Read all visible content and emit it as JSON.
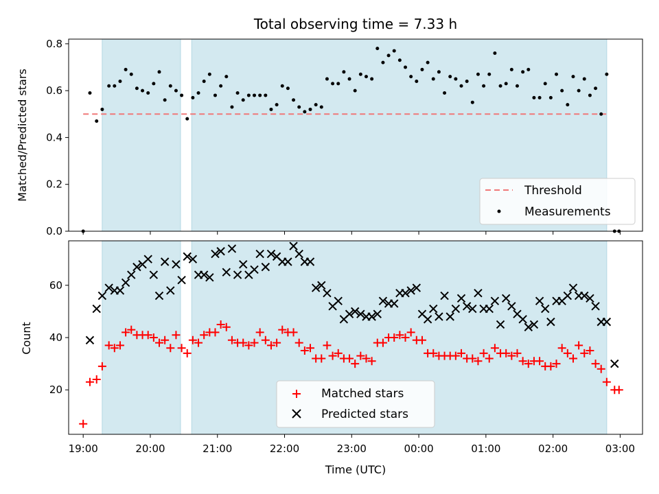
{
  "chart_data": [
    {
      "type": "scatter",
      "title": "Total observing time = 7.33 h",
      "ylabel": "Matched/Predicted stars",
      "xlabel": "",
      "xlim": [
        "18:47",
        "03:20"
      ],
      "ylim": [
        0.0,
        0.82
      ],
      "yticks": [
        0.0,
        0.2,
        0.4,
        0.6,
        0.8
      ],
      "ytick_labels": [
        "0.0",
        "0.2",
        "0.4",
        "0.6",
        "0.8"
      ],
      "grid": false,
      "legend_position": "lower-right",
      "shaded_intervals": [
        [
          "19:17",
          "20:27"
        ],
        [
          "20:37",
          "02:48"
        ]
      ],
      "shade_color": "#d3e9f0",
      "series": [
        {
          "name": "Threshold",
          "kind": "dashed-line",
          "color": "#f07878",
          "x": [
            "19:00",
            "02:48"
          ],
          "y": [
            0.5,
            0.5
          ]
        },
        {
          "name": "Measurements",
          "kind": "points",
          "color": "#000000",
          "x": [
            "19:00",
            "19:06",
            "19:12",
            "19:17",
            "19:23",
            "19:28",
            "19:33",
            "19:38",
            "19:43",
            "19:48",
            "19:53",
            "19:58",
            "20:03",
            "20:08",
            "20:13",
            "20:18",
            "20:23",
            "20:28",
            "20:33",
            "20:38",
            "20:43",
            "20:48",
            "20:53",
            "20:58",
            "21:03",
            "21:08",
            "21:13",
            "21:18",
            "21:23",
            "21:28",
            "21:33",
            "21:38",
            "21:43",
            "21:48",
            "21:53",
            "21:58",
            "22:03",
            "22:08",
            "22:13",
            "22:18",
            "22:23",
            "22:28",
            "22:33",
            "22:38",
            "22:43",
            "22:48",
            "22:53",
            "22:58",
            "23:03",
            "23:08",
            "23:13",
            "23:18",
            "23:23",
            "23:28",
            "23:33",
            "23:38",
            "23:43",
            "23:48",
            "23:53",
            "23:58",
            "00:03",
            "00:08",
            "00:13",
            "00:18",
            "00:23",
            "00:28",
            "00:33",
            "00:38",
            "00:43",
            "00:48",
            "00:53",
            "00:58",
            "01:03",
            "01:08",
            "01:13",
            "01:18",
            "01:23",
            "01:28",
            "01:33",
            "01:38",
            "01:43",
            "01:48",
            "01:53",
            "01:58",
            "02:03",
            "02:08",
            "02:13",
            "02:18",
            "02:23",
            "02:28",
            "02:33",
            "02:38",
            "02:43",
            "02:48",
            "02:55",
            "02:59"
          ],
          "y": [
            0.0,
            0.59,
            0.47,
            0.52,
            0.62,
            0.62,
            0.64,
            0.69,
            0.67,
            0.61,
            0.6,
            0.59,
            0.63,
            0.68,
            0.56,
            0.62,
            0.6,
            0.58,
            0.48,
            0.57,
            0.59,
            0.64,
            0.67,
            0.58,
            0.62,
            0.66,
            0.53,
            0.59,
            0.56,
            0.58,
            0.58,
            0.58,
            0.58,
            0.52,
            0.54,
            0.62,
            0.61,
            0.56,
            0.53,
            0.51,
            0.52,
            0.54,
            0.53,
            0.65,
            0.63,
            0.63,
            0.68,
            0.65,
            0.6,
            0.67,
            0.66,
            0.65,
            0.78,
            0.72,
            0.75,
            0.77,
            0.73,
            0.7,
            0.66,
            0.64,
            0.69,
            0.72,
            0.65,
            0.68,
            0.59,
            0.66,
            0.65,
            0.62,
            0.64,
            0.55,
            0.67,
            0.62,
            0.67,
            0.76,
            0.62,
            0.63,
            0.69,
            0.62,
            0.68,
            0.69,
            0.57,
            0.57,
            0.63,
            0.57,
            0.67,
            0.6,
            0.54,
            0.66,
            0.6,
            0.65,
            0.58,
            0.61,
            0.5,
            0.67,
            0.0,
            0.0
          ]
        }
      ]
    },
    {
      "type": "scatter",
      "title": "",
      "xlabel": "Time (UTC)",
      "ylabel": "Count",
      "xlim": [
        "18:47",
        "03:20"
      ],
      "ylim": [
        3,
        77
      ],
      "xticks": [
        "19:00",
        "20:00",
        "21:00",
        "22:00",
        "23:00",
        "00:00",
        "01:00",
        "02:00",
        "03:00"
      ],
      "yticks": [
        20,
        40,
        60
      ],
      "grid": false,
      "legend_position": "lower-center",
      "shaded_intervals": [
        [
          "19:17",
          "20:27"
        ],
        [
          "20:37",
          "02:48"
        ]
      ],
      "shade_color": "#d3e9f0",
      "series": [
        {
          "name": "Matched stars",
          "marker": "plus",
          "color": "#ff0000",
          "x": [
            "19:00",
            "19:06",
            "19:12",
            "19:17",
            "19:23",
            "19:28",
            "19:33",
            "19:38",
            "19:43",
            "19:48",
            "19:53",
            "19:58",
            "20:03",
            "20:08",
            "20:13",
            "20:18",
            "20:23",
            "20:28",
            "20:33",
            "20:38",
            "20:43",
            "20:48",
            "20:53",
            "20:58",
            "21:03",
            "21:08",
            "21:13",
            "21:18",
            "21:23",
            "21:28",
            "21:33",
            "21:38",
            "21:43",
            "21:48",
            "21:53",
            "21:58",
            "22:03",
            "22:08",
            "22:13",
            "22:18",
            "22:23",
            "22:28",
            "22:33",
            "22:38",
            "22:43",
            "22:48",
            "22:53",
            "22:58",
            "23:03",
            "23:08",
            "23:13",
            "23:18",
            "23:23",
            "23:28",
            "23:33",
            "23:38",
            "23:43",
            "23:48",
            "23:53",
            "23:58",
            "00:03",
            "00:08",
            "00:13",
            "00:18",
            "00:23",
            "00:28",
            "00:33",
            "00:38",
            "00:43",
            "00:48",
            "00:53",
            "00:58",
            "01:03",
            "01:08",
            "01:13",
            "01:18",
            "01:23",
            "01:28",
            "01:33",
            "01:38",
            "01:43",
            "01:48",
            "01:53",
            "01:58",
            "02:03",
            "02:08",
            "02:13",
            "02:18",
            "02:23",
            "02:28",
            "02:33",
            "02:38",
            "02:43",
            "02:48",
            "02:55",
            "02:59"
          ],
          "y": [
            7,
            23,
            24,
            29,
            37,
            36,
            37,
            42,
            43,
            41,
            41,
            41,
            40,
            38,
            39,
            36,
            41,
            36,
            34,
            39,
            38,
            41,
            42,
            42,
            45,
            44,
            39,
            38,
            38,
            37,
            38,
            42,
            39,
            37,
            38,
            43,
            42,
            42,
            38,
            35,
            36,
            32,
            32,
            37,
            33,
            34,
            32,
            32,
            30,
            33,
            32,
            31,
            38,
            38,
            40,
            40,
            41,
            40,
            42,
            39,
            39,
            34,
            34,
            33,
            33,
            33,
            33,
            34,
            32,
            32,
            31,
            34,
            32,
            36,
            34,
            34,
            33,
            34,
            31,
            30,
            31,
            31,
            29,
            29,
            30,
            36,
            34,
            32,
            37,
            34,
            35,
            30,
            28,
            23,
            20,
            20
          ]
        },
        {
          "name": "Predicted stars",
          "marker": "x",
          "color": "#000000",
          "x": [
            "19:06",
            "19:12",
            "19:17",
            "19:23",
            "19:28",
            "19:33",
            "19:38",
            "19:43",
            "19:48",
            "19:53",
            "19:58",
            "20:03",
            "20:08",
            "20:13",
            "20:18",
            "20:23",
            "20:28",
            "20:33",
            "20:38",
            "20:43",
            "20:48",
            "20:53",
            "20:58",
            "21:03",
            "21:08",
            "21:13",
            "21:18",
            "21:23",
            "21:28",
            "21:33",
            "21:38",
            "21:43",
            "21:48",
            "21:53",
            "21:58",
            "22:03",
            "22:08",
            "22:13",
            "22:18",
            "22:23",
            "22:28",
            "22:33",
            "22:38",
            "22:43",
            "22:48",
            "22:53",
            "22:58",
            "23:03",
            "23:08",
            "23:13",
            "23:18",
            "23:23",
            "23:28",
            "23:33",
            "23:38",
            "23:43",
            "23:48",
            "23:53",
            "23:58",
            "00:03",
            "00:08",
            "00:13",
            "00:18",
            "00:23",
            "00:28",
            "00:33",
            "00:38",
            "00:43",
            "00:48",
            "00:53",
            "00:58",
            "01:03",
            "01:08",
            "01:13",
            "01:18",
            "01:23",
            "01:28",
            "01:33",
            "01:38",
            "01:43",
            "01:48",
            "01:53",
            "01:58",
            "02:03",
            "02:08",
            "02:13",
            "02:18",
            "02:23",
            "02:28",
            "02:33",
            "02:38",
            "02:43",
            "02:48",
            "02:55"
          ],
          "y": [
            39,
            51,
            56,
            59,
            58,
            58,
            61,
            64,
            67,
            68,
            70,
            64,
            56,
            69,
            58,
            68,
            62,
            71,
            70,
            64,
            64,
            63,
            72,
            73,
            65,
            74,
            64,
            68,
            64,
            66,
            72,
            67,
            72,
            71,
            69,
            69,
            75,
            72,
            69,
            69,
            59,
            60,
            57,
            52,
            54,
            47,
            49,
            50,
            49,
            48,
            48,
            49,
            54,
            53,
            53,
            57,
            57,
            58,
            59,
            49,
            47,
            51,
            48,
            56,
            48,
            51,
            55,
            52,
            51,
            57,
            51,
            51,
            54,
            45,
            55,
            52,
            49,
            47,
            44,
            45,
            54,
            51,
            46,
            54,
            54,
            56,
            59,
            56,
            56,
            55,
            52,
            46,
            46,
            30
          ]
        }
      ]
    }
  ]
}
